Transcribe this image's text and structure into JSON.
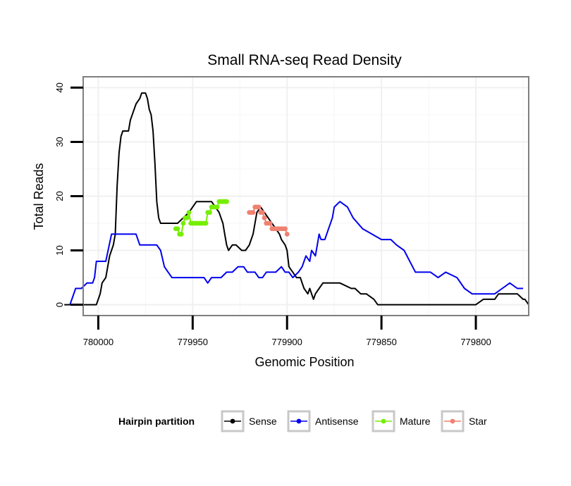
{
  "chart_data": {
    "type": "line",
    "title": "Small RNA-seq Read Density",
    "xlabel": "Genomic Position",
    "ylabel": "Total Reads",
    "x_reversed": true,
    "xlim": [
      780008,
      779772
    ],
    "ylim": [
      -2,
      42
    ],
    "x_ticks": [
      780000,
      779950,
      779900,
      779850,
      779800
    ],
    "x_tick_labels": [
      "780000",
      "779950",
      "779900",
      "779850",
      "779800"
    ],
    "y_ticks": [
      0,
      10,
      20,
      30,
      40
    ],
    "y_tick_labels": [
      "0",
      "10",
      "20",
      "30",
      "40"
    ],
    "grid": true,
    "legend": {
      "position": "bottom",
      "title": "Hairpin partition",
      "entries": [
        "Sense",
        "Antisense",
        "Mature",
        "Star"
      ]
    },
    "series": [
      {
        "name": "Sense",
        "color": "#000000",
        "style": "line",
        "x": [
          780018,
          780001,
          779999,
          779998,
          779996,
          779995,
          779994,
          779992,
          779991,
          779990,
          779989,
          779988,
          779987,
          779986,
          779984,
          779983,
          779982,
          779981,
          779980,
          779978,
          779977,
          779976,
          779975,
          779974,
          779973,
          779972,
          779971,
          779970,
          779969,
          779968,
          779967,
          779966,
          779964,
          779963,
          779962,
          779961,
          779960,
          779959,
          779958,
          779955,
          779952,
          779950,
          779948,
          779946,
          779944,
          779942,
          779940,
          779938,
          779936,
          779935,
          779934,
          779933,
          779932,
          779931,
          779929,
          779927,
          779924,
          779922,
          779920,
          779919,
          779918,
          779917,
          779916,
          779914,
          779912,
          779910,
          779908,
          779906,
          779904,
          779903,
          779901,
          779900,
          779899,
          779897,
          779895,
          779893,
          779892,
          779891,
          779889,
          779888,
          779887,
          779886,
          779885,
          779883,
          779881,
          779879,
          779876,
          779874,
          779872,
          779866,
          779864,
          779861,
          779858,
          779854,
          779852,
          779850,
          779800,
          779796,
          779792,
          779790,
          779788,
          779786,
          779780,
          779778,
          779775,
          779774,
          779772
        ],
        "values": [
          0,
          0,
          2,
          4,
          5,
          7,
          9,
          11,
          13,
          22,
          28,
          31,
          32,
          32,
          32,
          34,
          35,
          36,
          37,
          38,
          39,
          39,
          39,
          38,
          36,
          35,
          32,
          26,
          19,
          16,
          15,
          15,
          15,
          15,
          15,
          15,
          15,
          15,
          15,
          16,
          17,
          18,
          19,
          19,
          19,
          19,
          19,
          18,
          17,
          16,
          15,
          13,
          11,
          10,
          11,
          11,
          10,
          10,
          11,
          12,
          13,
          15,
          17,
          18,
          17,
          16,
          15,
          14,
          13,
          12,
          11,
          10,
          7,
          6,
          5,
          5,
          4,
          3,
          2,
          3,
          2,
          1,
          2,
          3,
          4,
          4,
          4,
          4,
          4,
          3,
          3,
          2,
          2,
          1,
          0,
          0,
          0,
          1,
          1,
          1,
          2,
          2,
          2,
          2,
          1,
          1,
          0
        ]
      },
      {
        "name": "Antisense",
        "color": "#0000ee",
        "style": "line",
        "x": [
          780015,
          780012,
          780009,
          780006,
          780003,
          780002,
          780001,
          779998,
          779996,
          779993,
          779991,
          779988,
          779985,
          779980,
          779978,
          779975,
          779973,
          779972,
          779971,
          779969,
          779967,
          779965,
          779963,
          779961,
          779959,
          779955,
          779950,
          779947,
          779944,
          779942,
          779940,
          779937,
          779935,
          779932,
          779929,
          779926,
          779923,
          779921,
          779919,
          779917,
          779915,
          779913,
          779911,
          779909,
          779906,
          779903,
          779901,
          779899,
          779897,
          779894,
          779892,
          779891,
          779890,
          779888,
          779887,
          779885,
          779884,
          779883,
          779882,
          779881,
          779880,
          779878,
          779876,
          779875,
          779872,
          779868,
          779865,
          779860,
          779855,
          779850,
          779845,
          779842,
          779838,
          779835,
          779832,
          779829,
          779826,
          779824,
          779820,
          779816,
          779810,
          779806,
          779802,
          779798,
          779794,
          779790,
          779786,
          779782,
          779778,
          779775
        ],
        "values": [
          0,
          3,
          3,
          4,
          4,
          5,
          8,
          8,
          8,
          13,
          13,
          13,
          13,
          13,
          11,
          11,
          11,
          11,
          11,
          11,
          10,
          7,
          6,
          5,
          5,
          5,
          5,
          5,
          5,
          4,
          5,
          5,
          5,
          6,
          6,
          7,
          7,
          6,
          6,
          6,
          5,
          5,
          6,
          6,
          6,
          7,
          6,
          6,
          5,
          6,
          7,
          8,
          9,
          8,
          10,
          9,
          11,
          13,
          12,
          12,
          12,
          14,
          16,
          18,
          19,
          18,
          16,
          14,
          13,
          12,
          12,
          11,
          10,
          8,
          6,
          6,
          6,
          6,
          5,
          6,
          5,
          3,
          2,
          2,
          2,
          2,
          3,
          4,
          3,
          3
        ]
      },
      {
        "name": "Mature",
        "color": "#76ee00",
        "style": "points-line",
        "x": [
          779959,
          779958,
          779957,
          779956,
          779955,
          779954,
          779953,
          779952,
          779951,
          779950,
          779949,
          779948,
          779947,
          779946,
          779945,
          779944,
          779943,
          779942,
          779941,
          779940,
          779939,
          779938,
          779937,
          779936,
          779935,
          779934,
          779933,
          779932
        ],
        "values": [
          14,
          14,
          13,
          13,
          15,
          16,
          16,
          17,
          15,
          15,
          15,
          15,
          15,
          15,
          15,
          15,
          15,
          17,
          17,
          18,
          18,
          18,
          18,
          19,
          19,
          19,
          19,
          19
        ]
      },
      {
        "name": "Star",
        "color": "#f08070",
        "style": "points-line",
        "x": [
          779920,
          779919,
          779918,
          779917,
          779916,
          779915,
          779914,
          779913,
          779912,
          779911,
          779910,
          779909,
          779908,
          779907,
          779906,
          779905,
          779904,
          779903,
          779902,
          779901,
          779900
        ],
        "values": [
          17,
          17,
          17,
          18,
          18,
          18,
          17,
          17,
          16,
          15,
          15,
          15,
          14,
          14,
          14,
          14,
          14,
          14,
          14,
          14,
          13
        ]
      }
    ]
  }
}
